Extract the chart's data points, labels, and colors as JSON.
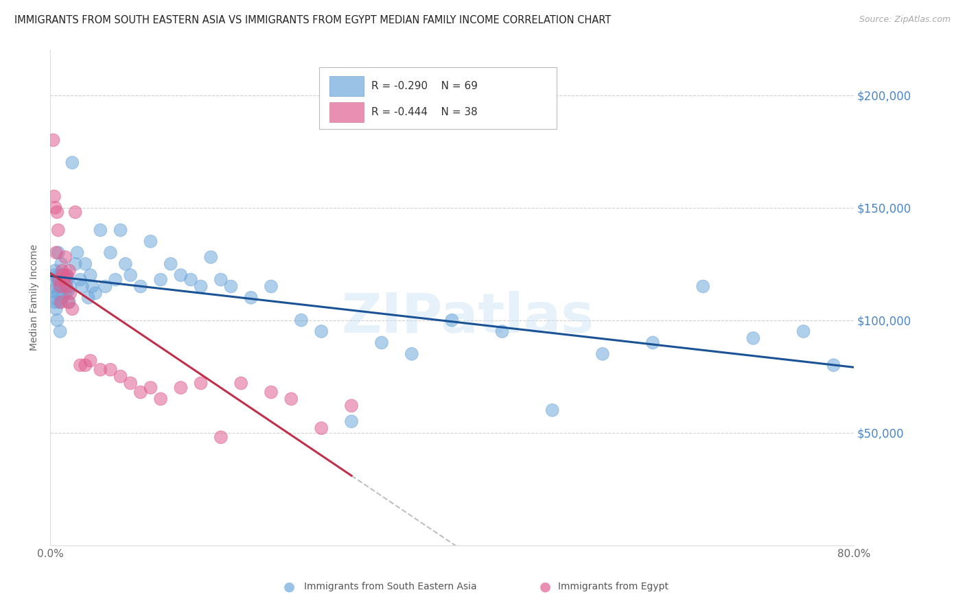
{
  "title": "IMMIGRANTS FROM SOUTH EASTERN ASIA VS IMMIGRANTS FROM EGYPT MEDIAN FAMILY INCOME CORRELATION CHART",
  "source": "Source: ZipAtlas.com",
  "ylabel": "Median Family Income",
  "xlim": [
    0.0,
    0.8
  ],
  "ylim": [
    0,
    220000
  ],
  "yticks": [
    0,
    50000,
    100000,
    150000,
    200000
  ],
  "ytick_labels": [
    "",
    "$50,000",
    "$100,000",
    "$150,000",
    "$200,000"
  ],
  "xticks": [
    0.0,
    0.1,
    0.2,
    0.3,
    0.4,
    0.5,
    0.6,
    0.7,
    0.8
  ],
  "xtick_labels": [
    "0.0%",
    "",
    "",
    "",
    "",
    "",
    "",
    "",
    "80.0%"
  ],
  "watermark": "ZIPatlas",
  "series1_label": "Immigrants from South Eastern Asia",
  "series2_label": "Immigrants from Egypt",
  "series1_R": "-0.290",
  "series1_N": "69",
  "series2_R": "-0.444",
  "series2_N": "38",
  "series1_color": "#6fa8dc",
  "series2_color": "#e06090",
  "series1_line_color": "#1a5296",
  "series2_line_color": "#c0304a",
  "series1_x": [
    0.002,
    0.003,
    0.004,
    0.005,
    0.005,
    0.006,
    0.006,
    0.007,
    0.007,
    0.008,
    0.008,
    0.009,
    0.009,
    0.01,
    0.01,
    0.011,
    0.012,
    0.012,
    0.013,
    0.014,
    0.015,
    0.016,
    0.017,
    0.018,
    0.019,
    0.02,
    0.022,
    0.025,
    0.027,
    0.03,
    0.032,
    0.035,
    0.038,
    0.04,
    0.042,
    0.045,
    0.05,
    0.055,
    0.06,
    0.065,
    0.07,
    0.075,
    0.08,
    0.09,
    0.1,
    0.11,
    0.12,
    0.13,
    0.14,
    0.15,
    0.16,
    0.17,
    0.18,
    0.2,
    0.22,
    0.25,
    0.27,
    0.3,
    0.33,
    0.36,
    0.4,
    0.45,
    0.5,
    0.55,
    0.6,
    0.65,
    0.7,
    0.75,
    0.78
  ],
  "series1_y": [
    113000,
    110000,
    120000,
    122000,
    108000,
    115000,
    105000,
    118000,
    100000,
    112000,
    130000,
    108000,
    120000,
    115000,
    95000,
    125000,
    110000,
    118000,
    120000,
    115000,
    112000,
    120000,
    118000,
    113000,
    108000,
    115000,
    170000,
    125000,
    130000,
    118000,
    115000,
    125000,
    110000,
    120000,
    115000,
    112000,
    140000,
    115000,
    130000,
    118000,
    140000,
    125000,
    120000,
    115000,
    135000,
    118000,
    125000,
    120000,
    118000,
    115000,
    128000,
    118000,
    115000,
    110000,
    115000,
    100000,
    95000,
    55000,
    90000,
    85000,
    100000,
    95000,
    60000,
    85000,
    90000,
    115000,
    92000,
    95000,
    80000
  ],
  "series2_x": [
    0.003,
    0.004,
    0.005,
    0.006,
    0.007,
    0.008,
    0.009,
    0.01,
    0.011,
    0.012,
    0.013,
    0.014,
    0.015,
    0.016,
    0.017,
    0.018,
    0.019,
    0.02,
    0.022,
    0.025,
    0.03,
    0.035,
    0.04,
    0.05,
    0.06,
    0.07,
    0.08,
    0.09,
    0.1,
    0.11,
    0.13,
    0.15,
    0.17,
    0.19,
    0.22,
    0.24,
    0.27,
    0.3
  ],
  "series2_y": [
    180000,
    155000,
    150000,
    130000,
    148000,
    140000,
    118000,
    115000,
    108000,
    122000,
    120000,
    118000,
    128000,
    115000,
    120000,
    108000,
    122000,
    112000,
    105000,
    148000,
    80000,
    80000,
    82000,
    78000,
    78000,
    75000,
    72000,
    68000,
    70000,
    65000,
    70000,
    72000,
    48000,
    72000,
    68000,
    65000,
    52000,
    62000
  ],
  "series1_dot_size": 180,
  "series2_dot_size": 180,
  "series1_big_dot_idx": 17,
  "series1_big_dot_size": 500
}
